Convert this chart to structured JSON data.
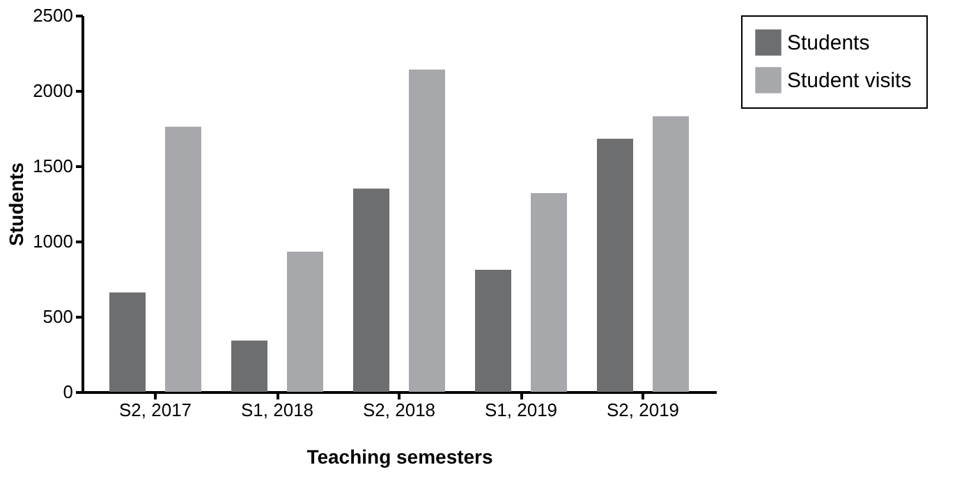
{
  "chart_data": {
    "type": "bar",
    "xlabel": "Teaching semesters",
    "ylabel": "Students",
    "categories": [
      "S2, 2017",
      "S1, 2018",
      "S2, 2018",
      "S1, 2019",
      "S2, 2019"
    ],
    "series": [
      {
        "name": "Students",
        "color": "#6d6e70",
        "values": [
          660,
          340,
          1350,
          810,
          1680
        ]
      },
      {
        "name": "Student visits",
        "color": "#a7a8ab",
        "values": [
          1760,
          930,
          2140,
          1320,
          1830
        ]
      }
    ],
    "ylim": [
      0,
      2500
    ],
    "yticks": [
      0,
      500,
      1000,
      1500,
      2000,
      2500
    ],
    "grid": false,
    "legend": "right"
  }
}
